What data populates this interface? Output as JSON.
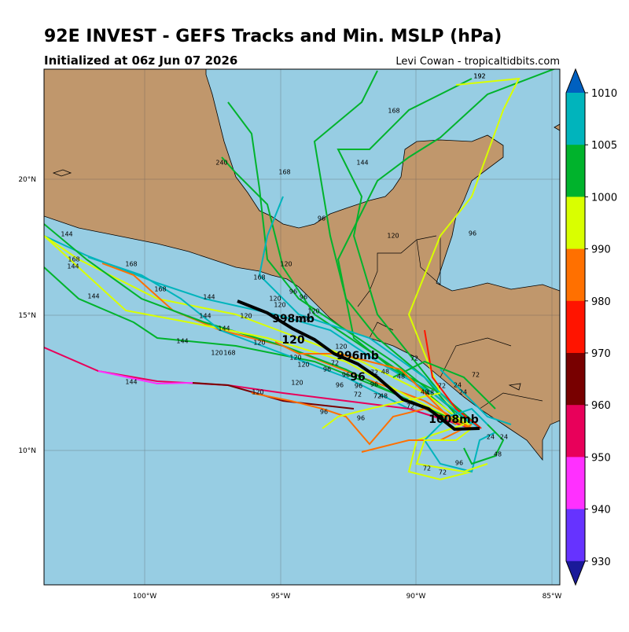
{
  "header": {
    "title": "92E INVEST - GEFS Tracks and Min. MSLP (hPa)",
    "subtitle": "Initialized at 06z Jun 07 2026",
    "credit": "Levi Cowan - tropicaltidbits.com"
  },
  "map": {
    "lat_labels": [
      "20°N",
      "15°N",
      "10°N"
    ],
    "lon_labels": [
      "100°W",
      "95°W",
      "90°W",
      "85°W"
    ]
  },
  "colorbar": {
    "ticks": [
      1010,
      1005,
      1000,
      990,
      980,
      970,
      960,
      950,
      940,
      930
    ],
    "colors": [
      "#00b4bc",
      "#00b32c",
      "#d9ff00",
      "#ff7000",
      "#ff1400",
      "#780000",
      "#e8005a",
      "#ff30ff",
      "#6633ff"
    ],
    "over_color": "#0060c0",
    "under_color": "#1a1a99"
  },
  "mean_track": {
    "labels": [
      "998mb",
      "120",
      "996mb",
      "96",
      "1008mb"
    ]
  },
  "member_labels": [
    "192",
    "192",
    "168",
    "240",
    "168",
    "144",
    "96",
    "120",
    "96",
    "144",
    "168",
    "168",
    "144",
    "168",
    "144",
    "168",
    "144",
    "144",
    "120",
    "120",
    "144",
    "120",
    "168",
    "144",
    "120",
    "120",
    "120",
    "96",
    "96",
    "120",
    "120",
    "120",
    "120",
    "96",
    "96",
    "120",
    "96",
    "96",
    "72",
    "72",
    "72",
    "96",
    "72",
    "48",
    "48",
    "48",
    "24",
    "24",
    "24",
    "24",
    "48",
    "72",
    "72",
    "96",
    "72",
    "72",
    "48",
    "96",
    "144",
    "120",
    "168",
    "120",
    "96",
    "72",
    "48",
    "72"
  ]
}
